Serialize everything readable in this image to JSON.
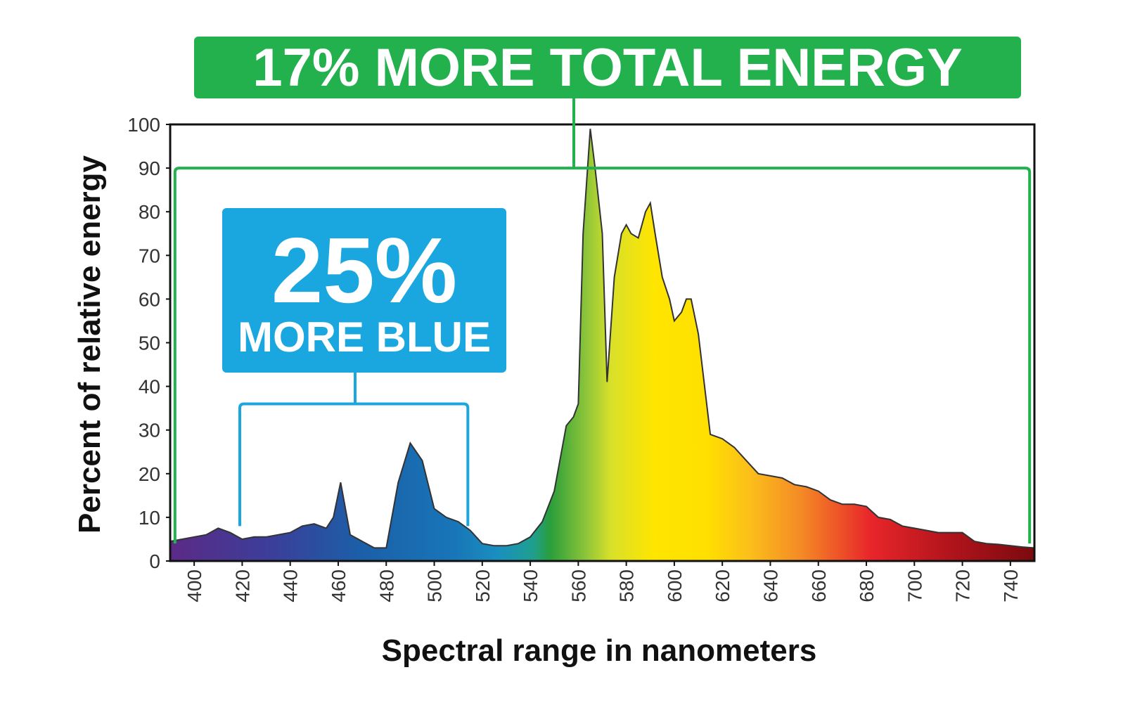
{
  "chart_data": {
    "type": "area",
    "title": "",
    "xlabel": "Spectral range in nanometers",
    "ylabel": "Percent of relative energy",
    "xlim": [
      390,
      750
    ],
    "ylim": [
      0,
      100
    ],
    "x_ticks": [
      400,
      420,
      440,
      460,
      480,
      500,
      520,
      540,
      560,
      580,
      600,
      620,
      640,
      660,
      680,
      700,
      720,
      740
    ],
    "y_ticks": [
      0,
      10,
      20,
      30,
      40,
      50,
      60,
      70,
      80,
      90,
      100
    ],
    "grid": false,
    "legend": "none",
    "fill": "visible-spectrum-gradient",
    "series": [
      {
        "x": [
          390,
          395,
          400,
          405,
          410,
          415,
          420,
          425,
          430,
          435,
          440,
          445,
          450,
          455,
          458,
          461,
          465,
          470,
          475,
          480,
          485,
          490,
          495,
          500,
          505,
          510,
          515,
          520,
          525,
          530,
          535,
          540,
          545,
          550,
          555,
          558,
          560,
          562,
          565,
          567,
          570,
          572,
          575,
          578,
          580,
          582,
          585,
          588,
          590,
          592,
          595,
          598,
          600,
          603,
          605,
          607,
          610,
          615,
          620,
          625,
          630,
          635,
          640,
          645,
          650,
          655,
          660,
          665,
          670,
          675,
          680,
          685,
          690,
          695,
          700,
          705,
          710,
          715,
          720,
          725,
          730,
          735,
          740,
          745,
          750
        ],
        "y": [
          4.5,
          5,
          5.5,
          6,
          7.5,
          6.5,
          5,
          5.5,
          5.5,
          6,
          6.5,
          8,
          8.5,
          7.5,
          10,
          18,
          6,
          4.5,
          3,
          3,
          18,
          27,
          23,
          12,
          10,
          9,
          7,
          4,
          3.5,
          3.5,
          4,
          5.5,
          9,
          16,
          31,
          33,
          36,
          75,
          99,
          90,
          75,
          41,
          65,
          75,
          77,
          75,
          74,
          80,
          82,
          75,
          65,
          60,
          55,
          57,
          60,
          60,
          52,
          29,
          28,
          26,
          23,
          20,
          19.5,
          19,
          17.5,
          17,
          16,
          14,
          13,
          13,
          12.5,
          10,
          9.5,
          8,
          7.5,
          7,
          6.5,
          6.5,
          6.5,
          4.5,
          4,
          3.8,
          3.5,
          3.2,
          3
        ]
      }
    ],
    "annotations": [
      {
        "text": "17% MORE TOTAL ENERGY",
        "range": [
          392,
          748
        ],
        "y_level": 90,
        "color": "#22b14c"
      },
      {
        "text_big": "25%",
        "text_small": "MORE BLUE",
        "range": [
          419,
          514
        ],
        "y_level": 36,
        "color": "#1aa7e0"
      }
    ],
    "colors": {
      "green_badge": "#22b14c",
      "blue_badge": "#1aa7e0",
      "axis": "#222222",
      "tick_text": "#333333"
    }
  }
}
